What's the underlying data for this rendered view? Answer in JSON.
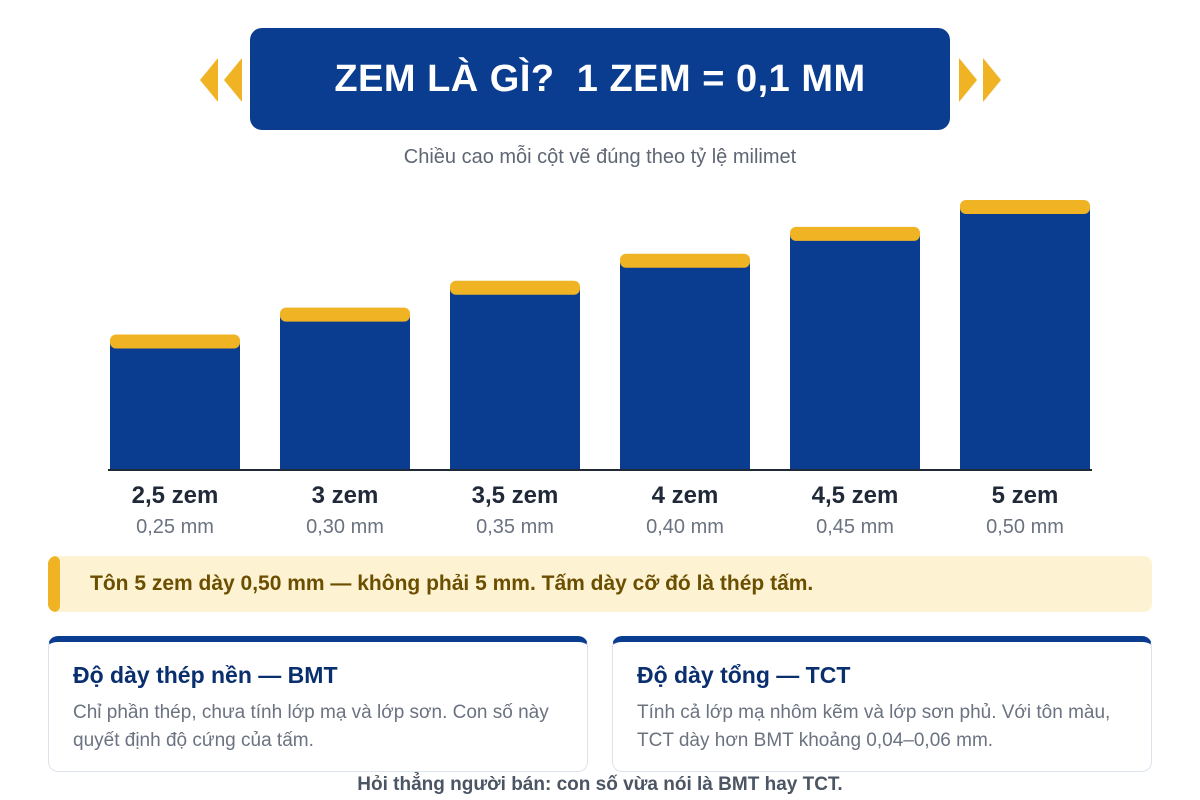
{
  "header": {
    "title": "ZEM LÀ GÌ?  1 ZEM = 0,1 MM",
    "subtitle": "Chiều cao mỗi cột vẽ đúng theo tỷ lệ milimet"
  },
  "colors": {
    "bar": "#0a3d8f",
    "bar_cap": "#f0b323",
    "accent": "#f0b323"
  },
  "chart_data": {
    "type": "bar",
    "categories": [
      "2,5 zem",
      "3 zem",
      "3,5 zem",
      "4 zem",
      "4,5 zem",
      "5 zem"
    ],
    "value_labels": [
      "0,25 mm",
      "0,30 mm",
      "0,35 mm",
      "0,40 mm",
      "0,45 mm",
      "0,50 mm"
    ],
    "values": [
      0.25,
      0.3,
      0.35,
      0.4,
      0.45,
      0.5
    ],
    "unit": "mm",
    "title": "",
    "xlabel": "",
    "ylabel": "",
    "ylim": [
      0,
      0.5
    ],
    "grid": false,
    "legend": "none"
  },
  "note": {
    "text": "Tôn 5 zem dày 0,50 mm — không phải 5 mm. Tấm dày cỡ đó là thép tấm."
  },
  "cards": [
    {
      "title": "Độ dày thép nền — BMT",
      "text": "Chỉ phần thép, chưa tính lớp mạ và lớp sơn. Con số này quyết định độ cứng của tấm."
    },
    {
      "title": "Độ dày tổng — TCT",
      "text": "Tính cả lớp mạ nhôm kẽm và lớp sơn phủ. Với tôn màu, TCT dày hơn BMT khoảng 0,04–0,06 mm."
    }
  ],
  "footer": {
    "text": "Hỏi thẳng người bán: con số vừa nói là BMT hay TCT."
  }
}
